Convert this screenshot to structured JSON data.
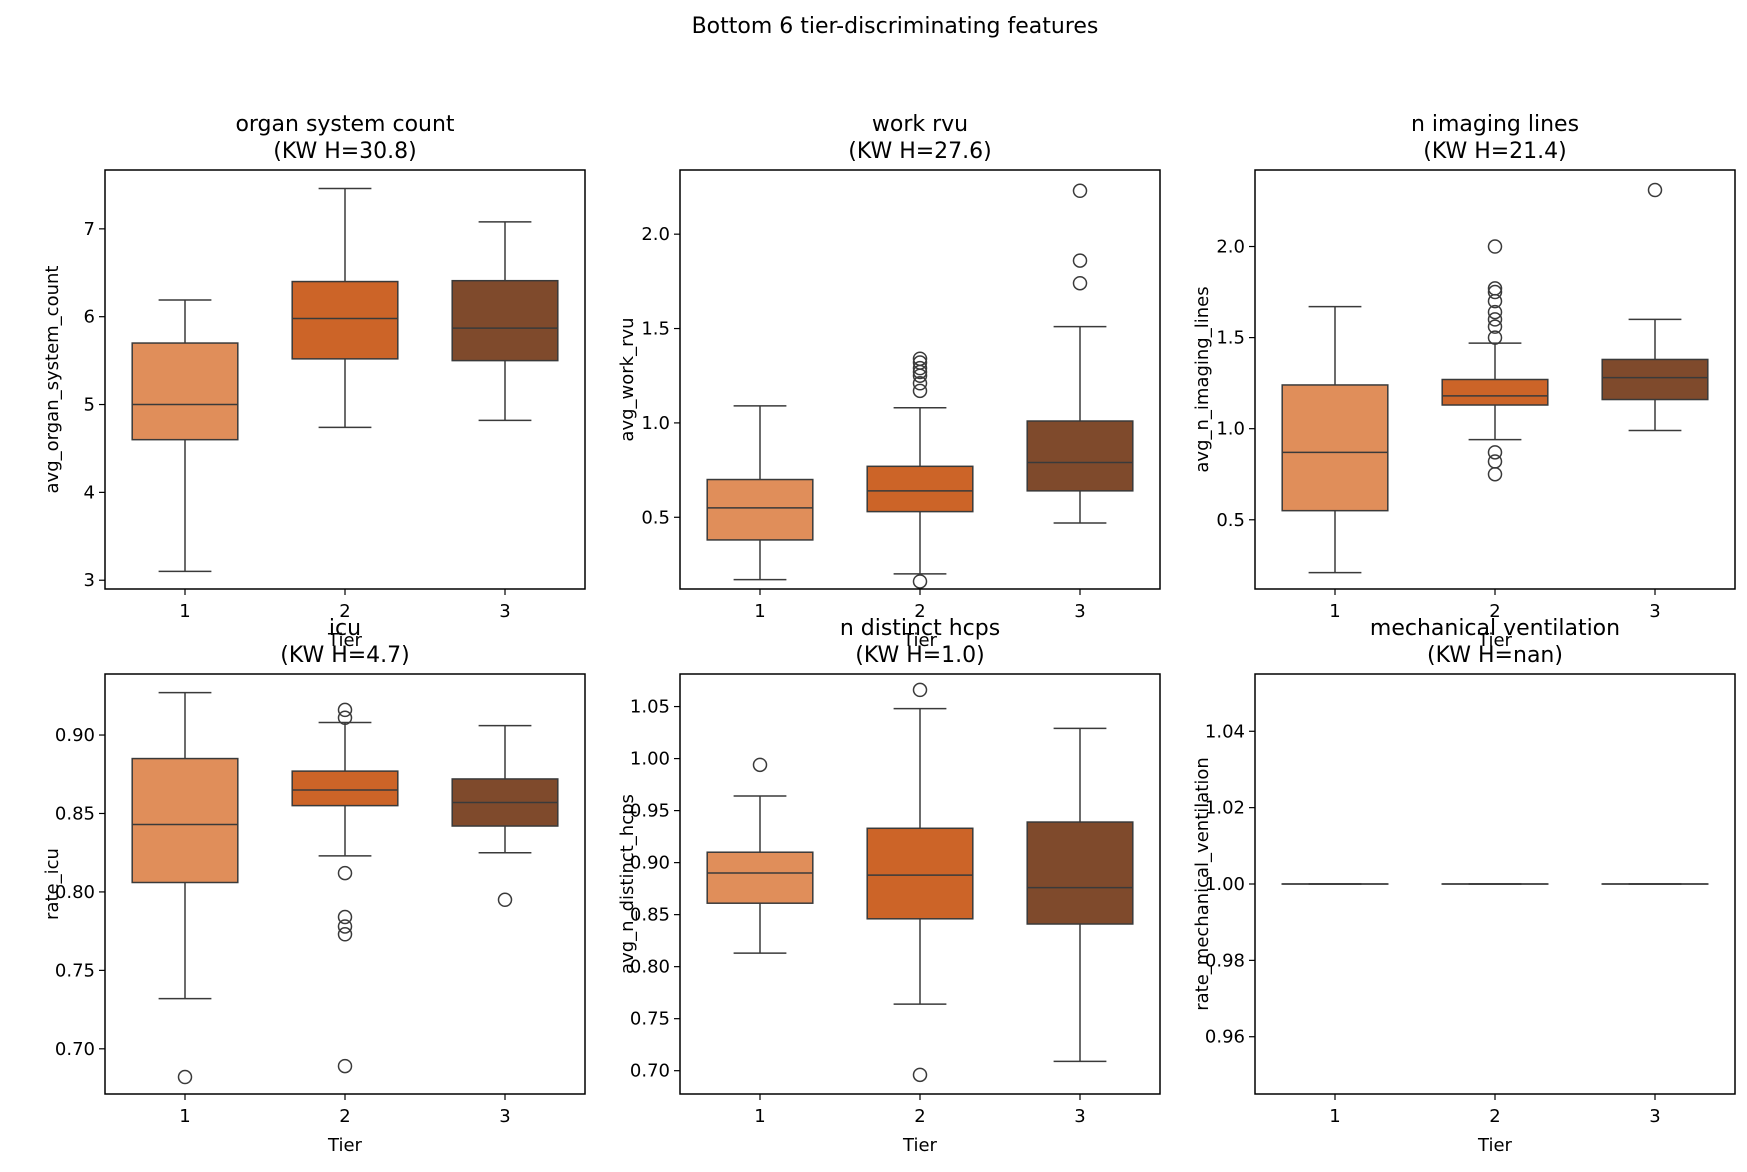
{
  "figure": {
    "suptitle": "Bottom 6 tier-discriminating features"
  },
  "colors": {
    "tier1": "#E08E5A",
    "tier2": "#CC6428",
    "tier3": "#7F4A2C",
    "line": "#3a3a3a",
    "frame": "#000000"
  },
  "chart_data": [
    {
      "type": "box",
      "title_line1": "organ system count",
      "title_line2": "(KW H=30.8)",
      "xlabel": "Tier",
      "ylabel": "avg_organ_system_count",
      "categories": [
        "1",
        "2",
        "3"
      ],
      "ylim": [
        2.9,
        7.67
      ],
      "yticks": [
        3,
        4,
        5,
        6,
        7
      ],
      "tick_decimals": 0,
      "boxes": [
        {
          "tier": "1",
          "whislo": 3.1,
          "q1": 4.6,
          "med": 5.0,
          "q3": 5.7,
          "whishi": 6.19,
          "fliers": []
        },
        {
          "tier": "2",
          "whislo": 4.74,
          "q1": 5.52,
          "med": 5.98,
          "q3": 6.4,
          "whishi": 7.46,
          "fliers": []
        },
        {
          "tier": "3",
          "whislo": 4.82,
          "q1": 5.5,
          "med": 5.87,
          "q3": 6.41,
          "whishi": 7.08,
          "fliers": []
        }
      ]
    },
    {
      "type": "box",
      "title_line1": "work rvu",
      "title_line2": "(KW H=27.6)",
      "xlabel": "Tier",
      "ylabel": "avg_work_rvu",
      "categories": [
        "1",
        "2",
        "3"
      ],
      "ylim": [
        0.12,
        2.34
      ],
      "yticks": [
        0.5,
        1.0,
        1.5,
        2.0
      ],
      "tick_decimals": 1,
      "boxes": [
        {
          "tier": "1",
          "whislo": 0.17,
          "q1": 0.38,
          "med": 0.55,
          "q3": 0.7,
          "whishi": 1.09,
          "fliers": []
        },
        {
          "tier": "2",
          "whislo": 0.2,
          "q1": 0.53,
          "med": 0.64,
          "q3": 0.77,
          "whishi": 1.08,
          "fliers": [
            1.17,
            1.21,
            1.25,
            1.27,
            1.29,
            1.32,
            1.34,
            0.16
          ]
        },
        {
          "tier": "3",
          "whislo": 0.47,
          "q1": 0.64,
          "med": 0.79,
          "q3": 1.01,
          "whishi": 1.51,
          "fliers": [
            1.74,
            1.86,
            2.23
          ]
        }
      ]
    },
    {
      "type": "box",
      "title_line1": "n imaging lines",
      "title_line2": "(KW H=21.4)",
      "xlabel": "Tier",
      "ylabel": "avg_n_imaging_lines",
      "categories": [
        "1",
        "2",
        "3"
      ],
      "ylim": [
        0.12,
        2.42
      ],
      "yticks": [
        0.5,
        1.0,
        1.5,
        2.0
      ],
      "tick_decimals": 1,
      "boxes": [
        {
          "tier": "1",
          "whislo": 0.21,
          "q1": 0.55,
          "med": 0.87,
          "q3": 1.24,
          "whishi": 1.67,
          "fliers": []
        },
        {
          "tier": "2",
          "whislo": 0.94,
          "q1": 1.13,
          "med": 1.18,
          "q3": 1.27,
          "whishi": 1.47,
          "fliers": [
            1.5,
            1.56,
            1.6,
            1.64,
            1.7,
            1.75,
            1.77,
            2.0,
            0.87,
            0.82,
            0.75
          ]
        },
        {
          "tier": "3",
          "whislo": 0.99,
          "q1": 1.16,
          "med": 1.28,
          "q3": 1.38,
          "whishi": 1.6,
          "fliers": [
            2.31
          ]
        }
      ]
    },
    {
      "type": "box",
      "title_line1": "icu",
      "title_line2": "(KW H=4.7)",
      "xlabel": "Tier",
      "ylabel": "rate_icu",
      "categories": [
        "1",
        "2",
        "3"
      ],
      "ylim": [
        0.6712,
        0.9389
      ],
      "yticks": [
        0.7,
        0.75,
        0.8,
        0.85,
        0.9
      ],
      "tick_decimals": 2,
      "boxes": [
        {
          "tier": "1",
          "whislo": 0.732,
          "q1": 0.806,
          "med": 0.843,
          "q3": 0.885,
          "whishi": 0.927,
          "fliers": [
            0.682
          ]
        },
        {
          "tier": "2",
          "whislo": 0.823,
          "q1": 0.855,
          "med": 0.865,
          "q3": 0.877,
          "whishi": 0.908,
          "fliers": [
            0.911,
            0.916,
            0.812,
            0.784,
            0.778,
            0.773,
            0.689
          ]
        },
        {
          "tier": "3",
          "whislo": 0.825,
          "q1": 0.842,
          "med": 0.857,
          "q3": 0.872,
          "whishi": 0.906,
          "fliers": [
            0.795
          ]
        }
      ]
    },
    {
      "type": "box",
      "title_line1": "n distinct hcps",
      "title_line2": "(KW H=1.0)",
      "xlabel": "Tier",
      "ylabel": "avg_n_distinct_hcps",
      "categories": [
        "1",
        "2",
        "3"
      ],
      "ylim": [
        0.6776,
        1.0813
      ],
      "yticks": [
        0.7,
        0.75,
        0.8,
        0.85,
        0.9,
        0.95,
        1.0,
        1.05
      ],
      "tick_decimals": 2,
      "boxes": [
        {
          "tier": "1",
          "whislo": 0.813,
          "q1": 0.861,
          "med": 0.89,
          "q3": 0.91,
          "whishi": 0.964,
          "fliers": [
            0.994
          ]
        },
        {
          "tier": "2",
          "whislo": 0.764,
          "q1": 0.846,
          "med": 0.888,
          "q3": 0.933,
          "whishi": 1.048,
          "fliers": [
            1.066,
            0.696
          ]
        },
        {
          "tier": "3",
          "whislo": 0.709,
          "q1": 0.841,
          "med": 0.876,
          "q3": 0.939,
          "whishi": 1.029,
          "fliers": []
        }
      ]
    },
    {
      "type": "box",
      "title_line1": "mechanical ventilation",
      "title_line2": "(KW H=nan)",
      "xlabel": "Tier",
      "ylabel": "rate_mechanical_ventilation",
      "categories": [
        "1",
        "2",
        "3"
      ],
      "ylim": [
        0.945,
        1.055
      ],
      "yticks": [
        0.96,
        0.98,
        1.0,
        1.02,
        1.04
      ],
      "tick_decimals": 2,
      "boxes": [
        {
          "tier": "1",
          "whislo": 1.0,
          "q1": 1.0,
          "med": 1.0,
          "q3": 1.0,
          "whishi": 1.0,
          "fliers": []
        },
        {
          "tier": "2",
          "whislo": 1.0,
          "q1": 1.0,
          "med": 1.0,
          "q3": 1.0,
          "whishi": 1.0,
          "fliers": []
        },
        {
          "tier": "3",
          "whislo": 1.0,
          "q1": 1.0,
          "med": 1.0,
          "q3": 1.0,
          "whishi": 1.0,
          "fliers": []
        }
      ]
    }
  ]
}
